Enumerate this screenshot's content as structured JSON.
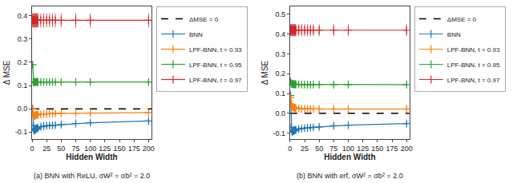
{
  "chart_data": [
    {
      "type": "line",
      "title": "(a) BNN with ReLU, σW² = σb² = 2.0",
      "xlabel": "Hidden Width",
      "ylabel": "Δ MSE",
      "x": [
        1,
        2,
        3,
        4,
        5,
        6,
        7,
        8,
        9,
        10,
        15,
        20,
        25,
        30,
        35,
        40,
        50,
        75,
        100,
        200
      ],
      "xlim": [
        0,
        205
      ],
      "xticks": [
        0,
        25,
        50,
        75,
        100,
        125,
        150,
        175,
        200
      ],
      "ylim": [
        -0.13,
        0.44
      ],
      "yticks": [
        -0.1,
        {
          "value": 0.0,
          "label": "0.0"
        },
        0.1,
        0.2,
        0.3,
        0.4
      ],
      "grid": false,
      "legend": "upper right",
      "hline": {
        "name": "ΔMSE = 0",
        "value": 0,
        "color": "#000000",
        "line_style": "dashed"
      },
      "series": [
        {
          "name": "BNN",
          "color": "#1f77b4",
          "marker": "plus",
          "line_style": "solid",
          "values": [
            0.0,
            -0.07,
            -0.09,
            -0.095,
            -0.09,
            -0.09,
            -0.085,
            -0.085,
            -0.083,
            -0.082,
            -0.077,
            -0.075,
            -0.073,
            -0.072,
            -0.071,
            -0.07,
            -0.068,
            -0.063,
            -0.06,
            -0.052
          ],
          "error": [
            0.01,
            0.012,
            0.01,
            0.01,
            0.01,
            0.01,
            0.01,
            0.01,
            0.01,
            0.01,
            0.01,
            0.01,
            0.01,
            0.01,
            0.01,
            0.01,
            0.01,
            0.01,
            0.01,
            0.01
          ]
        },
        {
          "name": "LPF-BNN, t = 0.93",
          "color": "#ff7f0e",
          "marker": "plus",
          "line_style": "solid",
          "values": [
            0.0,
            -0.025,
            -0.03,
            -0.03,
            -0.028,
            -0.028,
            -0.026,
            -0.026,
            -0.025,
            -0.025,
            -0.023,
            -0.022,
            -0.022,
            -0.021,
            -0.021,
            -0.02,
            -0.02,
            -0.019,
            -0.018,
            -0.016
          ],
          "error": [
            0.01,
            0.01,
            0.01,
            0.01,
            0.01,
            0.01,
            0.01,
            0.01,
            0.01,
            0.01,
            0.01,
            0.01,
            0.01,
            0.01,
            0.01,
            0.01,
            0.01,
            0.01,
            0.01,
            0.01
          ]
        },
        {
          "name": "LPF-BNN, t = 0.95",
          "color": "#2ca02c",
          "marker": "plus",
          "line_style": "solid",
          "values": [
            0.19,
            0.115,
            0.115,
            0.115,
            0.115,
            0.115,
            0.115,
            0.115,
            0.115,
            0.115,
            0.115,
            0.115,
            0.115,
            0.115,
            0.115,
            0.115,
            0.115,
            0.115,
            0.115,
            0.115
          ],
          "error": [
            0.01,
            0.01,
            0.008,
            0.008,
            0.008,
            0.008,
            0.008,
            0.008,
            0.008,
            0.008,
            0.008,
            0.008,
            0.008,
            0.008,
            0.008,
            0.008,
            0.008,
            0.008,
            0.008,
            0.008
          ]
        },
        {
          "name": "LPF-BNN, t = 0.97",
          "color": "#d62728",
          "marker": "plus",
          "line_style": "solid",
          "values": [
            0.38,
            0.38,
            0.38,
            0.38,
            0.38,
            0.38,
            0.38,
            0.38,
            0.38,
            0.38,
            0.38,
            0.38,
            0.38,
            0.38,
            0.38,
            0.38,
            0.38,
            0.38,
            0.38,
            0.38
          ],
          "error": [
            0.03,
            0.03,
            0.03,
            0.03,
            0.03,
            0.03,
            0.03,
            0.03,
            0.03,
            0.03,
            0.03,
            0.03,
            0.03,
            0.03,
            0.03,
            0.03,
            0.03,
            0.03,
            0.03,
            0.03
          ]
        }
      ]
    },
    {
      "type": "line",
      "title": "(b) BNN with erf, σW² = σb² = 2.0",
      "xlabel": "Hidden Width",
      "ylabel": "Δ MSE",
      "x": [
        1,
        2,
        3,
        4,
        5,
        6,
        7,
        8,
        9,
        10,
        15,
        20,
        25,
        30,
        35,
        40,
        50,
        75,
        100,
        200
      ],
      "xlim": [
        0,
        205
      ],
      "xticks": [
        0,
        25,
        50,
        75,
        100,
        125,
        150,
        175,
        200
      ],
      "ylim": [
        -0.13,
        0.54
      ],
      "yticks": [
        -0.1,
        {
          "value": 0.0,
          "label": "0.0"
        },
        0.1,
        0.2,
        0.3,
        0.4,
        0.5
      ],
      "grid": false,
      "legend": "upper right",
      "hline": {
        "name": "ΔMSE = 0",
        "value": 0,
        "color": "#000000",
        "line_style": "dashed"
      },
      "series": [
        {
          "name": "BNN",
          "color": "#1f77b4",
          "marker": "plus",
          "line_style": "solid",
          "values": [
            0.09,
            -0.07,
            -0.09,
            -0.095,
            -0.09,
            -0.09,
            -0.087,
            -0.086,
            -0.084,
            -0.083,
            -0.079,
            -0.077,
            -0.075,
            -0.074,
            -0.072,
            -0.071,
            -0.069,
            -0.063,
            -0.06,
            -0.052
          ],
          "error": [
            0.01,
            0.012,
            0.01,
            0.01,
            0.01,
            0.01,
            0.01,
            0.01,
            0.01,
            0.01,
            0.01,
            0.01,
            0.01,
            0.01,
            0.01,
            0.01,
            0.01,
            0.01,
            0.01,
            0.01
          ]
        },
        {
          "name": "LPF-BNN, t = 0.93",
          "color": "#ff7f0e",
          "marker": "plus",
          "line_style": "solid",
          "values": [
            0.08,
            0.045,
            0.038,
            0.033,
            0.031,
            0.03,
            0.028,
            0.027,
            0.026,
            0.025,
            0.024,
            0.023,
            0.023,
            0.022,
            0.022,
            0.022,
            0.022,
            0.022,
            0.022,
            0.022
          ],
          "error": [
            0.01,
            0.01,
            0.01,
            0.01,
            0.01,
            0.01,
            0.01,
            0.01,
            0.01,
            0.01,
            0.01,
            0.01,
            0.01,
            0.01,
            0.01,
            0.01,
            0.01,
            0.01,
            0.01,
            0.01
          ]
        },
        {
          "name": "LPF-BNN, t = 0.95",
          "color": "#2ca02c",
          "marker": "plus",
          "line_style": "solid",
          "values": [
            0.16,
            0.15,
            0.148,
            0.148,
            0.147,
            0.147,
            0.147,
            0.147,
            0.146,
            0.146,
            0.146,
            0.145,
            0.145,
            0.145,
            0.145,
            0.145,
            0.145,
            0.145,
            0.145,
            0.145
          ],
          "error": [
            0.01,
            0.008,
            0.008,
            0.008,
            0.008,
            0.008,
            0.008,
            0.008,
            0.008,
            0.008,
            0.008,
            0.008,
            0.008,
            0.008,
            0.008,
            0.008,
            0.008,
            0.008,
            0.008,
            0.008
          ]
        },
        {
          "name": "LPF-BNN, t = 0.97",
          "color": "#d62728",
          "marker": "plus",
          "line_style": "solid",
          "values": [
            0.42,
            0.42,
            0.42,
            0.42,
            0.42,
            0.42,
            0.42,
            0.42,
            0.42,
            0.42,
            0.42,
            0.42,
            0.42,
            0.42,
            0.42,
            0.42,
            0.42,
            0.42,
            0.42,
            0.42
          ],
          "error": [
            0.03,
            0.03,
            0.03,
            0.03,
            0.03,
            0.03,
            0.03,
            0.03,
            0.03,
            0.03,
            0.03,
            0.03,
            0.03,
            0.03,
            0.03,
            0.03,
            0.03,
            0.03,
            0.03,
            0.03
          ]
        }
      ]
    }
  ]
}
